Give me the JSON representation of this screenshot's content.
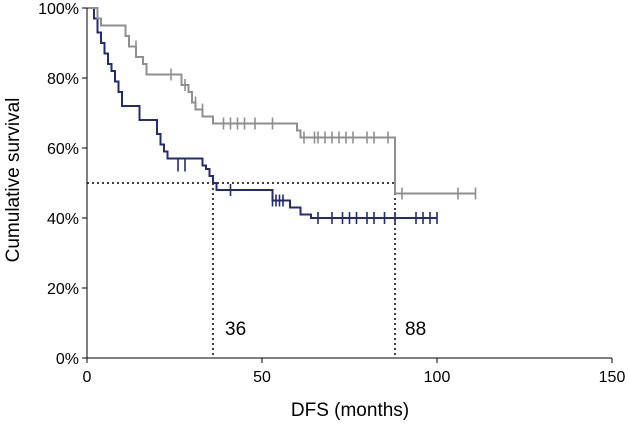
{
  "chart_data": {
    "type": "line",
    "title": "",
    "xlabel": "DFS (months)",
    "ylabel": "Cumulative survival",
    "xlim": [
      0,
      150
    ],
    "ylim": [
      0,
      100
    ],
    "xticks": [
      0,
      50,
      100,
      150
    ],
    "xtick_labels": [
      "0",
      "50",
      "100",
      "150"
    ],
    "yticks": [
      0,
      20,
      40,
      60,
      80,
      100
    ],
    "ytick_labels": [
      "0%",
      "20%",
      "40%",
      "60%",
      "80%",
      "100%"
    ],
    "grid": false,
    "colors": {
      "navy": "#232c6e",
      "gray": "#8f8f8f",
      "ref": "#000000"
    },
    "series": [
      {
        "name": "navy",
        "color": "#232c6e",
        "steps": [
          [
            0,
            100
          ],
          [
            2,
            97
          ],
          [
            3,
            93
          ],
          [
            4,
            90
          ],
          [
            5,
            87
          ],
          [
            6,
            84
          ],
          [
            7,
            82
          ],
          [
            8,
            79
          ],
          [
            9,
            76
          ],
          [
            10,
            72
          ],
          [
            14,
            72
          ],
          [
            15,
            68
          ],
          [
            19,
            68
          ],
          [
            20,
            64
          ],
          [
            21,
            61
          ],
          [
            22,
            59
          ],
          [
            23,
            57
          ],
          [
            32,
            57
          ],
          [
            33,
            55
          ],
          [
            34,
            54
          ],
          [
            35,
            52
          ],
          [
            36,
            50
          ],
          [
            37,
            48
          ],
          [
            52,
            48
          ],
          [
            53,
            45
          ],
          [
            57,
            45
          ],
          [
            58,
            43
          ],
          [
            60,
            43
          ],
          [
            61,
            41
          ],
          [
            63,
            41
          ],
          [
            64,
            40
          ],
          [
            100,
            40
          ]
        ],
        "censored": [
          [
            26,
            55
          ],
          [
            28,
            55
          ],
          [
            41,
            48
          ],
          [
            53,
            45
          ],
          [
            54,
            45
          ],
          [
            55,
            45
          ],
          [
            56,
            45
          ],
          [
            66,
            40
          ],
          [
            70,
            40
          ],
          [
            73,
            40
          ],
          [
            75,
            40
          ],
          [
            77,
            40
          ],
          [
            80,
            40
          ],
          [
            82,
            40
          ],
          [
            85,
            40
          ],
          [
            88,
            40
          ],
          [
            94,
            40
          ],
          [
            96,
            40
          ],
          [
            98,
            40
          ],
          [
            100,
            40
          ]
        ]
      },
      {
        "name": "gray",
        "color": "#8f8f8f",
        "steps": [
          [
            0,
            100
          ],
          [
            3,
            97
          ],
          [
            4,
            95
          ],
          [
            10,
            95
          ],
          [
            11,
            92
          ],
          [
            12,
            89
          ],
          [
            14,
            86
          ],
          [
            16,
            84
          ],
          [
            17,
            81
          ],
          [
            26,
            81
          ],
          [
            27,
            78
          ],
          [
            29,
            76
          ],
          [
            30,
            73
          ],
          [
            31,
            71
          ],
          [
            32,
            71
          ],
          [
            33,
            69
          ],
          [
            35,
            69
          ],
          [
            36,
            67
          ],
          [
            50,
            67
          ],
          [
            51,
            67
          ],
          [
            54,
            67
          ],
          [
            60,
            65
          ],
          [
            61,
            63
          ],
          [
            87,
            63
          ],
          [
            88,
            47
          ],
          [
            111,
            47
          ]
        ],
        "censored": [
          [
            14,
            89
          ],
          [
            24,
            81
          ],
          [
            28,
            78
          ],
          [
            31,
            73
          ],
          [
            33,
            71
          ],
          [
            39,
            67
          ],
          [
            41,
            67
          ],
          [
            43,
            67
          ],
          [
            45,
            67
          ],
          [
            48,
            67
          ],
          [
            53,
            67
          ],
          [
            62,
            63
          ],
          [
            65,
            63
          ],
          [
            66,
            63
          ],
          [
            68,
            63
          ],
          [
            70,
            63
          ],
          [
            72,
            63
          ],
          [
            74,
            63
          ],
          [
            76,
            63
          ],
          [
            80,
            63
          ],
          [
            82,
            63
          ],
          [
            86,
            63
          ],
          [
            90,
            47
          ],
          [
            106,
            47
          ],
          [
            111,
            47
          ]
        ]
      }
    ],
    "reference_lines": {
      "y": 50,
      "x": [
        36,
        88
      ],
      "x_labels": [
        "36",
        "88"
      ]
    }
  }
}
